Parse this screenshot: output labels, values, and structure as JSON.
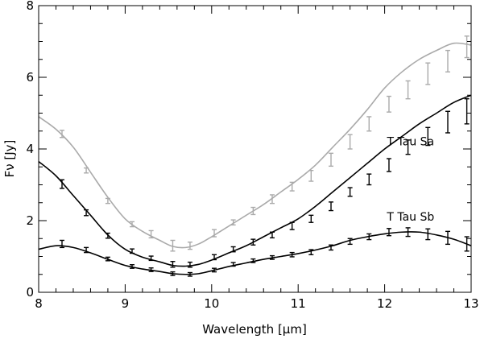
{
  "chart_data": {
    "type": "line",
    "title": "",
    "xlabel": "Wavelength [μm]",
    "ylabel": "Fν [Jy]",
    "xlim": [
      8,
      13
    ],
    "ylim": [
      0,
      8
    ],
    "x_ticks": [
      8,
      9,
      10,
      11,
      12,
      13
    ],
    "y_ticks": [
      0,
      2,
      4,
      6,
      8
    ],
    "grid": false,
    "legend": "none",
    "series": [
      {
        "color": "#aaaaaa",
        "curve": {
          "x": [
            8.0,
            8.2,
            8.4,
            8.6,
            8.8,
            9.0,
            9.2,
            9.4,
            9.55,
            9.7,
            9.85,
            10.0,
            10.2,
            10.4,
            10.6,
            10.8,
            11.0,
            11.2,
            11.4,
            11.6,
            11.8,
            12.0,
            12.2,
            12.4,
            12.6,
            12.8,
            13.0
          ],
          "y": [
            4.9,
            4.55,
            4.05,
            3.35,
            2.65,
            2.05,
            1.7,
            1.45,
            1.28,
            1.25,
            1.35,
            1.55,
            1.85,
            2.15,
            2.45,
            2.8,
            3.15,
            3.55,
            4.05,
            4.55,
            5.1,
            5.7,
            6.15,
            6.5,
            6.75,
            6.95,
            6.9
          ]
        },
        "error_points": [
          {
            "x": 8.27,
            "y": 4.42,
            "err": 0.1
          },
          {
            "x": 8.55,
            "y": 3.4,
            "err": 0.07
          },
          {
            "x": 8.8,
            "y": 2.55,
            "err": 0.07
          },
          {
            "x": 9.08,
            "y": 1.9,
            "err": 0.07
          },
          {
            "x": 9.3,
            "y": 1.62,
            "err": 0.1
          },
          {
            "x": 9.55,
            "y": 1.3,
            "err": 0.15
          },
          {
            "x": 9.75,
            "y": 1.3,
            "err": 0.1
          },
          {
            "x": 10.03,
            "y": 1.65,
            "err": 0.1
          },
          {
            "x": 10.25,
            "y": 1.95,
            "err": 0.07
          },
          {
            "x": 10.48,
            "y": 2.27,
            "err": 0.1
          },
          {
            "x": 10.7,
            "y": 2.6,
            "err": 0.12
          },
          {
            "x": 10.93,
            "y": 2.95,
            "err": 0.12
          },
          {
            "x": 11.15,
            "y": 3.25,
            "err": 0.15
          },
          {
            "x": 11.38,
            "y": 3.7,
            "err": 0.18
          },
          {
            "x": 11.6,
            "y": 4.2,
            "err": 0.2
          },
          {
            "x": 11.82,
            "y": 4.7,
            "err": 0.2
          },
          {
            "x": 12.05,
            "y": 5.25,
            "err": 0.22
          },
          {
            "x": 12.27,
            "y": 5.65,
            "err": 0.25
          },
          {
            "x": 12.5,
            "y": 6.1,
            "err": 0.3
          },
          {
            "x": 12.73,
            "y": 6.45,
            "err": 0.3
          },
          {
            "x": 12.95,
            "y": 6.85,
            "err": 0.3
          }
        ]
      },
      {
        "label": "T Tau Sa",
        "color": "#000000",
        "curve": {
          "x": [
            8.0,
            8.2,
            8.4,
            8.6,
            8.8,
            9.0,
            9.2,
            9.4,
            9.55,
            9.7,
            9.85,
            10.0,
            10.2,
            10.4,
            10.6,
            10.8,
            11.0,
            11.2,
            11.4,
            11.6,
            11.8,
            12.0,
            12.2,
            12.4,
            12.6,
            12.8,
            13.0
          ],
          "y": [
            3.65,
            3.25,
            2.7,
            2.15,
            1.6,
            1.2,
            0.98,
            0.85,
            0.75,
            0.73,
            0.78,
            0.9,
            1.1,
            1.3,
            1.55,
            1.8,
            2.05,
            2.4,
            2.8,
            3.2,
            3.6,
            4.0,
            4.35,
            4.7,
            5.0,
            5.3,
            5.5
          ]
        },
        "error_points": [
          {
            "x": 8.27,
            "y": 3.02,
            "err": 0.12
          },
          {
            "x": 8.55,
            "y": 2.22,
            "err": 0.08
          },
          {
            "x": 8.8,
            "y": 1.58,
            "err": 0.07
          },
          {
            "x": 9.08,
            "y": 1.15,
            "err": 0.06
          },
          {
            "x": 9.3,
            "y": 0.95,
            "err": 0.06
          },
          {
            "x": 9.55,
            "y": 0.78,
            "err": 0.08
          },
          {
            "x": 9.75,
            "y": 0.77,
            "err": 0.07
          },
          {
            "x": 10.03,
            "y": 0.98,
            "err": 0.07
          },
          {
            "x": 10.25,
            "y": 1.2,
            "err": 0.07
          },
          {
            "x": 10.48,
            "y": 1.4,
            "err": 0.08
          },
          {
            "x": 10.7,
            "y": 1.6,
            "err": 0.08
          },
          {
            "x": 10.93,
            "y": 1.85,
            "err": 0.1
          },
          {
            "x": 11.15,
            "y": 2.05,
            "err": 0.1
          },
          {
            "x": 11.38,
            "y": 2.4,
            "err": 0.12
          },
          {
            "x": 11.6,
            "y": 2.8,
            "err": 0.12
          },
          {
            "x": 11.82,
            "y": 3.15,
            "err": 0.15
          },
          {
            "x": 12.05,
            "y": 3.55,
            "err": 0.18
          },
          {
            "x": 12.27,
            "y": 4.05,
            "err": 0.2
          },
          {
            "x": 12.5,
            "y": 4.35,
            "err": 0.25
          },
          {
            "x": 12.73,
            "y": 4.75,
            "err": 0.3
          },
          {
            "x": 12.95,
            "y": 5.05,
            "err": 0.35
          }
        ]
      },
      {
        "label": "T Tau Sb",
        "color": "#000000",
        "curve": {
          "x": [
            8.0,
            8.2,
            8.4,
            8.6,
            8.8,
            9.0,
            9.2,
            9.4,
            9.55,
            9.7,
            9.85,
            10.0,
            10.2,
            10.4,
            10.6,
            10.8,
            11.0,
            11.2,
            11.4,
            11.6,
            11.8,
            12.0,
            12.2,
            12.4,
            12.6,
            12.8,
            13.0
          ],
          "y": [
            1.2,
            1.3,
            1.25,
            1.1,
            0.92,
            0.75,
            0.65,
            0.58,
            0.52,
            0.5,
            0.52,
            0.6,
            0.72,
            0.82,
            0.92,
            1.0,
            1.08,
            1.18,
            1.3,
            1.45,
            1.55,
            1.63,
            1.68,
            1.68,
            1.6,
            1.48,
            1.3
          ]
        },
        "error_points": [
          {
            "x": 8.27,
            "y": 1.35,
            "err": 0.1
          },
          {
            "x": 8.55,
            "y": 1.18,
            "err": 0.07
          },
          {
            "x": 8.8,
            "y": 0.93,
            "err": 0.05
          },
          {
            "x": 9.08,
            "y": 0.72,
            "err": 0.05
          },
          {
            "x": 9.3,
            "y": 0.63,
            "err": 0.05
          },
          {
            "x": 9.55,
            "y": 0.52,
            "err": 0.05
          },
          {
            "x": 9.75,
            "y": 0.5,
            "err": 0.05
          },
          {
            "x": 10.03,
            "y": 0.62,
            "err": 0.05
          },
          {
            "x": 10.25,
            "y": 0.78,
            "err": 0.05
          },
          {
            "x": 10.48,
            "y": 0.88,
            "err": 0.05
          },
          {
            "x": 10.7,
            "y": 0.97,
            "err": 0.05
          },
          {
            "x": 10.93,
            "y": 1.05,
            "err": 0.06
          },
          {
            "x": 11.15,
            "y": 1.12,
            "err": 0.07
          },
          {
            "x": 11.38,
            "y": 1.25,
            "err": 0.07
          },
          {
            "x": 11.6,
            "y": 1.42,
            "err": 0.08
          },
          {
            "x": 11.82,
            "y": 1.55,
            "err": 0.08
          },
          {
            "x": 12.05,
            "y": 1.68,
            "err": 0.1
          },
          {
            "x": 12.27,
            "y": 1.68,
            "err": 0.12
          },
          {
            "x": 12.5,
            "y": 1.62,
            "err": 0.15
          },
          {
            "x": 12.73,
            "y": 1.52,
            "err": 0.18
          },
          {
            "x": 12.95,
            "y": 1.35,
            "err": 0.2
          }
        ]
      }
    ]
  }
}
